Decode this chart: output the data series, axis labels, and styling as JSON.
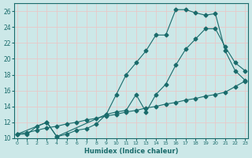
{
  "line1_x": [
    0,
    1,
    2,
    3,
    4,
    5,
    6,
    7,
    8,
    9,
    10,
    11,
    12,
    13,
    14,
    15,
    16,
    17,
    18,
    19,
    20,
    21,
    22,
    23
  ],
  "line1_y": [
    10.5,
    10.5,
    11.5,
    12.0,
    10.2,
    10.5,
    11.0,
    11.2,
    11.8,
    13.0,
    15.5,
    18.0,
    19.5,
    21.0,
    23.0,
    23.0,
    26.2,
    26.2,
    25.8,
    25.5,
    25.7,
    21.0,
    18.5,
    17.3
  ],
  "line2_x": [
    0,
    3,
    4,
    9,
    10,
    11,
    12,
    13,
    14,
    15,
    16,
    17,
    18,
    19,
    20,
    21,
    22,
    23
  ],
  "line2_y": [
    10.5,
    12.0,
    10.2,
    13.0,
    13.3,
    13.5,
    15.5,
    13.3,
    15.5,
    16.8,
    19.2,
    21.2,
    22.5,
    23.8,
    23.8,
    21.5,
    19.5,
    18.5
  ],
  "line3_x": [
    0,
    1,
    2,
    3,
    4,
    5,
    6,
    7,
    8,
    9,
    10,
    11,
    12,
    13,
    14,
    15,
    16,
    17,
    18,
    19,
    20,
    21,
    22,
    23
  ],
  "line3_y": [
    10.5,
    10.7,
    11.0,
    11.3,
    11.5,
    11.8,
    12.0,
    12.3,
    12.5,
    12.8,
    13.0,
    13.3,
    13.5,
    13.8,
    14.0,
    14.3,
    14.5,
    14.8,
    15.0,
    15.3,
    15.5,
    15.8,
    16.5,
    17.2
  ],
  "bg_color": "#cce8e8",
  "line_color": "#1a6b6b",
  "grid_color": "#b8d8d8",
  "xlim": [
    -0.3,
    23.3
  ],
  "ylim": [
    10,
    27
  ],
  "yticks": [
    10,
    12,
    14,
    16,
    18,
    20,
    22,
    24,
    26
  ],
  "xticks": [
    0,
    1,
    2,
    3,
    4,
    5,
    6,
    7,
    8,
    9,
    10,
    11,
    12,
    13,
    14,
    15,
    16,
    17,
    18,
    19,
    20,
    21,
    22,
    23
  ],
  "xlabel": "Humidex (Indice chaleur)",
  "marker": "D",
  "markersize": 2.5
}
